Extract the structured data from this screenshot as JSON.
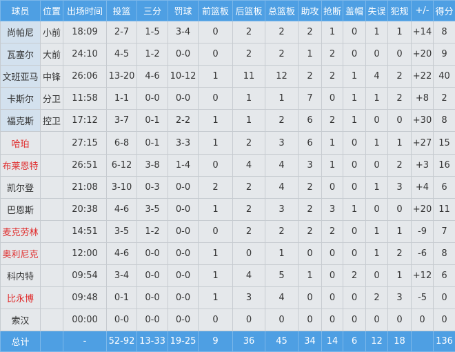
{
  "colors": {
    "header_bg": "#4e9fe3",
    "cell_bg": "#e5e8eb",
    "starter_name_bg": "#d3e1ee",
    "bench_highlight_text": "#e02a2a"
  },
  "headers": [
    "球员",
    "位置",
    "出场时间",
    "投篮",
    "三分",
    "罚球",
    "前篮板",
    "后篮板",
    "总篮板",
    "助攻",
    "抢断",
    "盖帽",
    "失误",
    "犯规",
    "+/-",
    "得分"
  ],
  "rows": [
    {
      "starter": true,
      "red": false,
      "cells": [
        "尚帕尼",
        "小前",
        "18:09",
        "2-7",
        "1-5",
        "3-4",
        "0",
        "2",
        "2",
        "2",
        "1",
        "0",
        "1",
        "1",
        "+14",
        "8"
      ]
    },
    {
      "starter": true,
      "red": false,
      "cells": [
        "瓦塞尔",
        "大前",
        "24:10",
        "4-5",
        "1-2",
        "0-0",
        "0",
        "2",
        "2",
        "1",
        "2",
        "0",
        "0",
        "0",
        "+20",
        "9"
      ]
    },
    {
      "starter": true,
      "red": false,
      "cells": [
        "文班亚马",
        "中锋",
        "26:06",
        "13-20",
        "4-6",
        "10-12",
        "1",
        "11",
        "12",
        "2",
        "2",
        "1",
        "4",
        "2",
        "+22",
        "40"
      ]
    },
    {
      "starter": true,
      "red": false,
      "cells": [
        "卡斯尔",
        "分卫",
        "11:58",
        "1-1",
        "0-0",
        "0-0",
        "0",
        "1",
        "1",
        "7",
        "0",
        "1",
        "1",
        "2",
        "+8",
        "2"
      ]
    },
    {
      "starter": true,
      "red": false,
      "cells": [
        "福克斯",
        "控卫",
        "17:12",
        "3-7",
        "0-1",
        "2-2",
        "1",
        "1",
        "2",
        "6",
        "2",
        "1",
        "0",
        "0",
        "+30",
        "8"
      ]
    },
    {
      "starter": false,
      "red": true,
      "cells": [
        "哈珀",
        "",
        "27:15",
        "6-8",
        "0-1",
        "3-3",
        "1",
        "2",
        "3",
        "6",
        "1",
        "0",
        "1",
        "1",
        "+27",
        "15"
      ]
    },
    {
      "starter": false,
      "red": true,
      "cells": [
        "布莱恩特",
        "",
        "26:51",
        "6-12",
        "3-8",
        "1-4",
        "0",
        "4",
        "4",
        "3",
        "1",
        "0",
        "0",
        "2",
        "+3",
        "16"
      ]
    },
    {
      "starter": false,
      "red": false,
      "cells": [
        "凯尔登",
        "",
        "21:08",
        "3-10",
        "0-3",
        "0-0",
        "2",
        "2",
        "4",
        "2",
        "0",
        "0",
        "1",
        "3",
        "+4",
        "6"
      ]
    },
    {
      "starter": false,
      "red": false,
      "cells": [
        "巴恩斯",
        "",
        "20:38",
        "4-6",
        "3-5",
        "0-0",
        "1",
        "2",
        "3",
        "2",
        "3",
        "1",
        "0",
        "0",
        "+20",
        "11"
      ]
    },
    {
      "starter": false,
      "red": true,
      "cells": [
        "麦克劳林",
        "",
        "14:51",
        "3-5",
        "1-2",
        "0-0",
        "0",
        "2",
        "2",
        "2",
        "2",
        "0",
        "1",
        "1",
        "-9",
        "7"
      ]
    },
    {
      "starter": false,
      "red": true,
      "cells": [
        "奥利尼克",
        "",
        "12:00",
        "4-6",
        "0-0",
        "0-0",
        "1",
        "0",
        "1",
        "0",
        "0",
        "0",
        "1",
        "2",
        "-6",
        "8"
      ]
    },
    {
      "starter": false,
      "red": false,
      "cells": [
        "科内特",
        "",
        "09:54",
        "3-4",
        "0-0",
        "0-0",
        "1",
        "4",
        "5",
        "1",
        "0",
        "2",
        "0",
        "1",
        "+12",
        "6"
      ]
    },
    {
      "starter": false,
      "red": true,
      "cells": [
        "比永博",
        "",
        "09:48",
        "0-1",
        "0-0",
        "0-0",
        "1",
        "3",
        "4",
        "0",
        "0",
        "0",
        "2",
        "3",
        "-5",
        "0"
      ]
    },
    {
      "starter": false,
      "red": false,
      "cells": [
        "索汉",
        "",
        "00:00",
        "0-0",
        "0-0",
        "0-0",
        "0",
        "0",
        "0",
        "0",
        "0",
        "0",
        "0",
        "0",
        "0",
        "0"
      ]
    }
  ],
  "total": [
    "总计",
    "",
    "-",
    "52-92",
    "13-33",
    "19-25",
    "9",
    "36",
    "45",
    "34",
    "14",
    "6",
    "12",
    "18",
    "",
    "136"
  ]
}
